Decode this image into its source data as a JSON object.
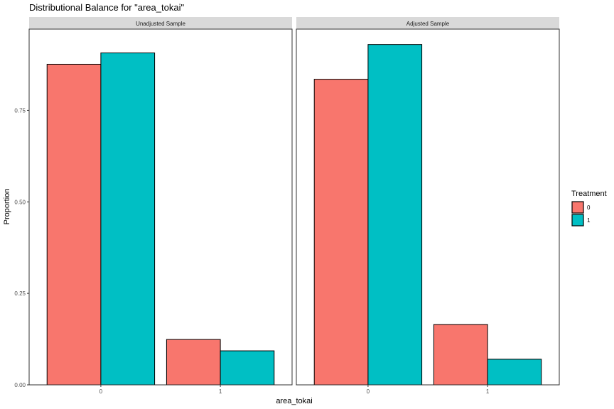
{
  "chart_data": {
    "type": "bar",
    "title": "Distributional Balance for \"area_tokai\"",
    "xlabel": "area_tokai",
    "ylabel": "Proportion",
    "ylim": [
      0,
      0.972
    ],
    "yticks": [
      "0.00",
      "0.25",
      "0.50",
      "0.75"
    ],
    "categories": [
      "0",
      "1"
    ],
    "legend": {
      "title": "Treatment",
      "position": "right",
      "entries": [
        {
          "label": "0",
          "color": "#F8766D"
        },
        {
          "label": "1",
          "color": "#00BFC4"
        }
      ]
    },
    "panels": [
      {
        "strip": "Unadjusted Sample",
        "series": [
          {
            "name": "0",
            "values": [
              0.876,
              0.124
            ]
          },
          {
            "name": "1",
            "values": [
              0.907,
              0.093
            ]
          }
        ]
      },
      {
        "strip": "Adjusted Sample",
        "series": [
          {
            "name": "0",
            "values": [
              0.835,
              0.165
            ]
          },
          {
            "name": "1",
            "values": [
              0.93,
              0.07
            ]
          }
        ]
      }
    ],
    "grid": false
  }
}
